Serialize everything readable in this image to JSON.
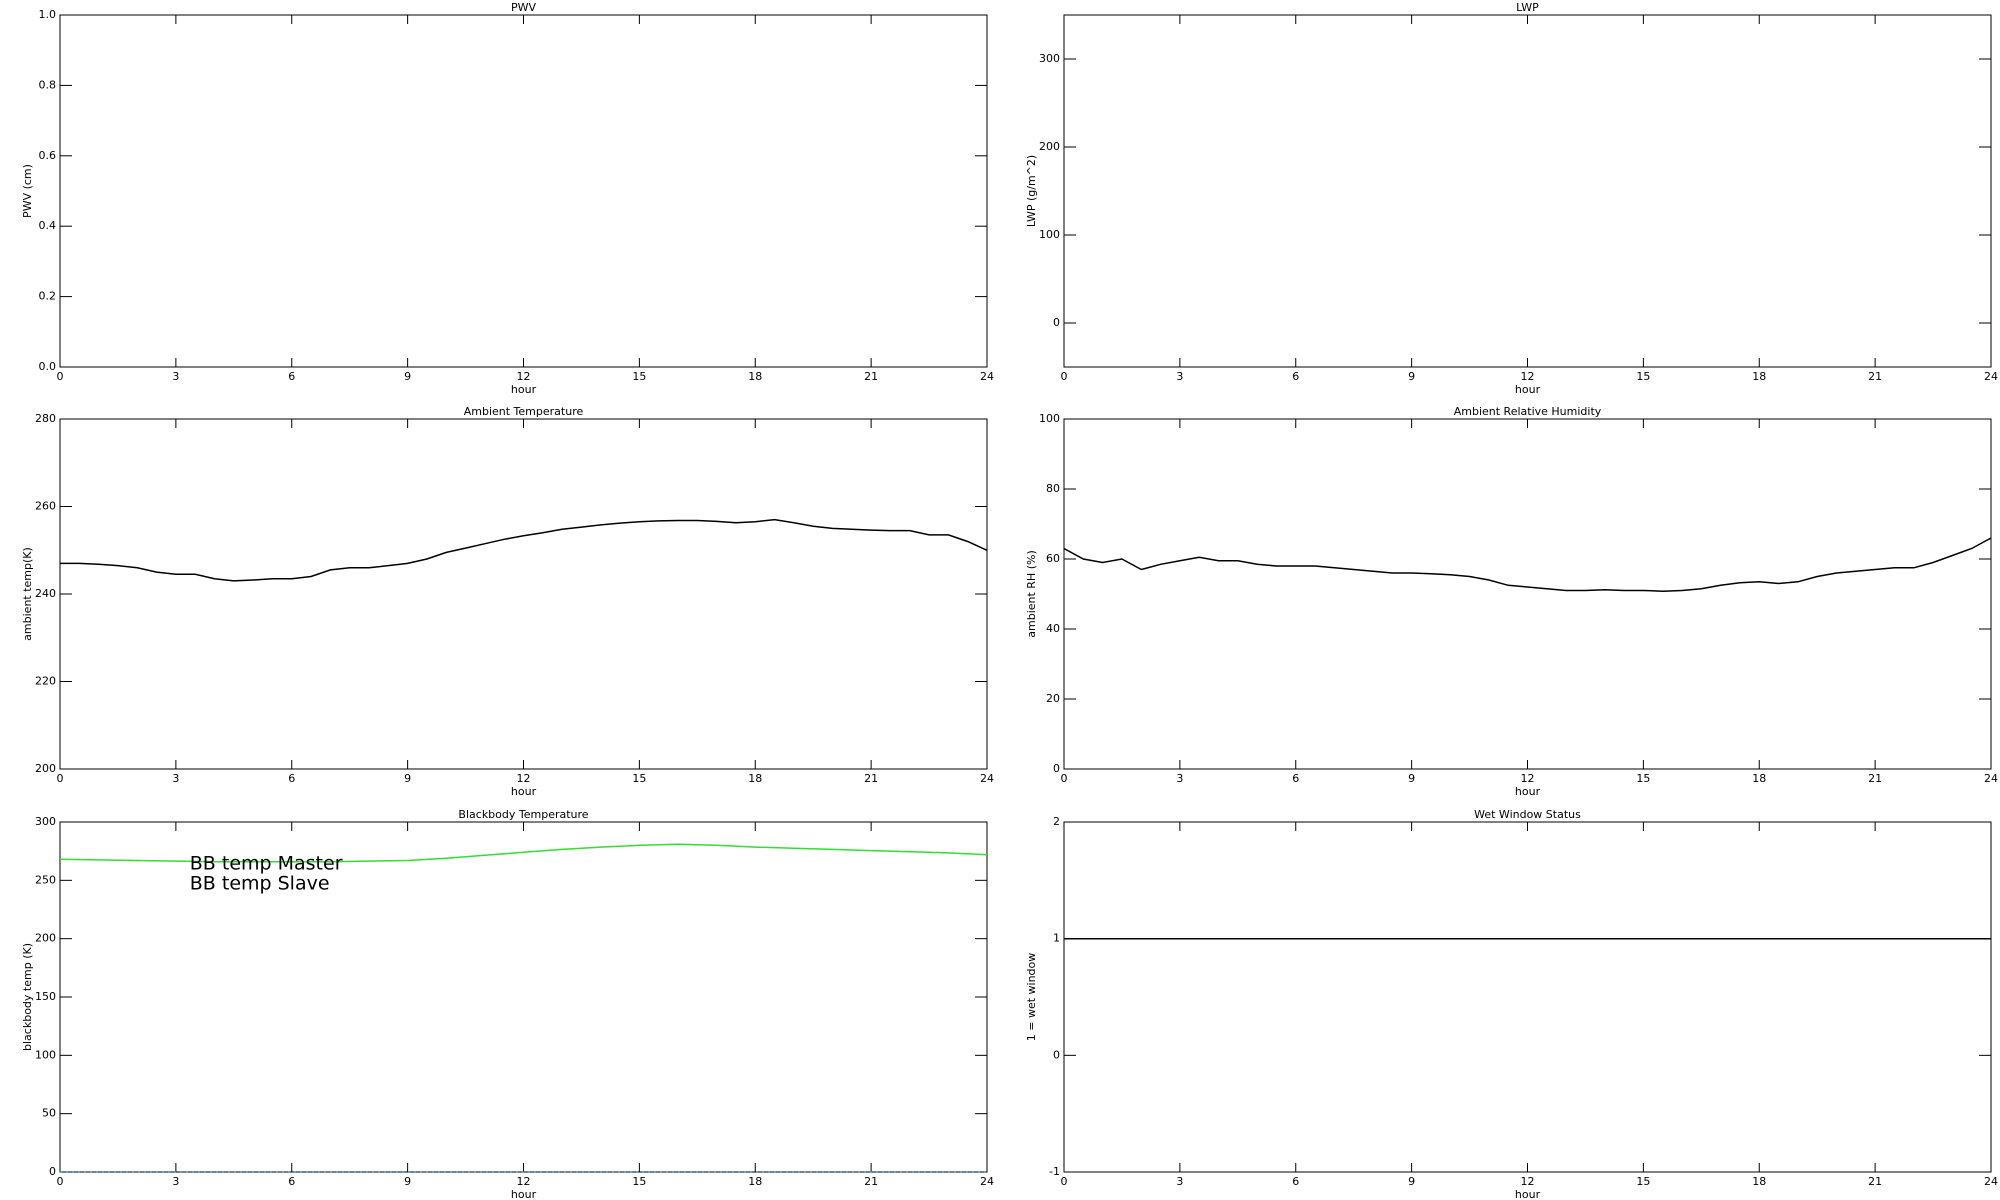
{
  "chart_data": [
    {
      "type": "line",
      "title": "PWV",
      "xlabel": "hour",
      "ylabel": "PWV (cm)",
      "xlim": [
        0,
        24
      ],
      "xticks": [
        0,
        3,
        6,
        9,
        12,
        15,
        18,
        21,
        24
      ],
      "ylim": [
        0,
        1
      ],
      "yticks": [
        {
          "value": 0,
          "label": "0.0"
        },
        0.2,
        0.4,
        0.6,
        0.8,
        {
          "value": 1,
          "label": "1.0"
        }
      ],
      "x": [],
      "series": []
    },
    {
      "type": "line",
      "title": "LWP",
      "xlabel": "hour",
      "ylabel": "LWP (g/m^2)",
      "xlim": [
        0,
        24
      ],
      "xticks": [
        0,
        3,
        6,
        9,
        12,
        15,
        18,
        21,
        24
      ],
      "ylim": [
        -50,
        350
      ],
      "yticks": [
        0,
        100,
        200,
        300
      ],
      "x": [],
      "series": []
    },
    {
      "type": "line",
      "title": "Ambient Temperature",
      "xlabel": "hour",
      "ylabel": "ambient temp(K)",
      "xlim": [
        0,
        24
      ],
      "xticks": [
        0,
        3,
        6,
        9,
        12,
        15,
        18,
        21,
        24
      ],
      "ylim": [
        200,
        280
      ],
      "yticks": [
        200,
        220,
        240,
        260,
        280
      ],
      "x": [
        0,
        0.5,
        1,
        1.5,
        2,
        2.5,
        3,
        3.5,
        4,
        4.5,
        5,
        5.5,
        6,
        6.5,
        7,
        7.5,
        8,
        8.5,
        9,
        9.5,
        10,
        10.5,
        11,
        11.5,
        12,
        12.5,
        13,
        13.5,
        14,
        14.5,
        15,
        15.5,
        16,
        16.5,
        17,
        17.5,
        18,
        18.5,
        19,
        19.5,
        20,
        20.5,
        21,
        21.5,
        22,
        22.5,
        23,
        23.5,
        24
      ],
      "series": [
        {
          "color": "#000000",
          "values": [
            247,
            247,
            246.8,
            246.5,
            246,
            245,
            244.5,
            244.5,
            243.5,
            243,
            243.2,
            243.5,
            243.5,
            244,
            245.5,
            246,
            246,
            246.5,
            247,
            248,
            249.5,
            250.5,
            251.5,
            252.5,
            253.3,
            254,
            254.8,
            255.3,
            255.8,
            256.2,
            256.5,
            256.7,
            256.8,
            256.8,
            256.6,
            256.3,
            256.5,
            257,
            256.3,
            255.5,
            255,
            254.8,
            254.6,
            254.5,
            254.5,
            253.5,
            253.5,
            252,
            250
          ]
        }
      ]
    },
    {
      "type": "line",
      "title": "Ambient Relative Humidity",
      "xlabel": "hour",
      "ylabel": "ambient RH (%)",
      "xlim": [
        0,
        24
      ],
      "xticks": [
        0,
        3,
        6,
        9,
        12,
        15,
        18,
        21,
        24
      ],
      "ylim": [
        0,
        100
      ],
      "yticks": [
        0,
        20,
        40,
        60,
        80,
        100
      ],
      "x": [
        0,
        0.5,
        1,
        1.5,
        2,
        2.5,
        3,
        3.5,
        4,
        4.5,
        5,
        5.5,
        6,
        6.5,
        7,
        7.5,
        8,
        8.5,
        9,
        9.5,
        10,
        10.5,
        11,
        11.5,
        12,
        12.5,
        13,
        13.5,
        14,
        14.5,
        15,
        15.5,
        16,
        16.5,
        17,
        17.5,
        18,
        18.5,
        19,
        19.5,
        20,
        20.5,
        21,
        21.5,
        22,
        22.5,
        23,
        23.5,
        24
      ],
      "series": [
        {
          "color": "#000000",
          "values": [
            63,
            60,
            59,
            60,
            57,
            58.5,
            59.5,
            60.5,
            59.5,
            59.5,
            58.5,
            58,
            58,
            58,
            57.5,
            57,
            56.5,
            56,
            56,
            55.8,
            55.5,
            55,
            54,
            52.5,
            52,
            51.5,
            51,
            51,
            51.2,
            51,
            51,
            50.8,
            51,
            51.5,
            52.5,
            53.2,
            53.5,
            53,
            53.5,
            55,
            56,
            56.5,
            57,
            57.5,
            57.5,
            59,
            61,
            63,
            66
          ]
        }
      ]
    },
    {
      "type": "line",
      "title": "Blackbody Temperature",
      "xlabel": "hour",
      "ylabel": "blackbody temp (K)",
      "xlim": [
        0,
        24
      ],
      "xticks": [
        0,
        3,
        6,
        9,
        12,
        15,
        18,
        21,
        24
      ],
      "ylim": [
        0,
        300
      ],
      "yticks": [
        0,
        50,
        100,
        150,
        200,
        250,
        300
      ],
      "x": [
        0,
        1,
        2,
        3,
        4,
        5,
        6,
        7,
        8,
        9,
        10,
        11,
        12,
        13,
        14,
        15,
        16,
        17,
        18,
        19,
        20,
        21,
        22,
        23,
        24
      ],
      "series": [
        {
          "name": "BB temp Master",
          "color": "#2a8cdc",
          "values": [
            0,
            0,
            0,
            0,
            0,
            0,
            0,
            0,
            0,
            0,
            0,
            0,
            0,
            0,
            0,
            0,
            0,
            0,
            0,
            0,
            0,
            0,
            0,
            0,
            0
          ]
        },
        {
          "name": "BB temp Slave",
          "color": "#33dd33",
          "values": [
            268,
            267.5,
            267,
            266.5,
            266,
            266,
            266,
            266,
            266.5,
            267,
            269,
            271.5,
            274,
            276.5,
            278.5,
            280,
            281,
            280,
            278.5,
            277.5,
            276.5,
            275.5,
            274.5,
            273.5,
            272
          ]
        }
      ]
    },
    {
      "type": "line",
      "title": "Wet Window Status",
      "xlabel": "hour",
      "ylabel": "1 = wet window",
      "xlim": [
        0,
        24
      ],
      "xticks": [
        0,
        3,
        6,
        9,
        12,
        15,
        18,
        21,
        24
      ],
      "ylim": [
        -1,
        2
      ],
      "yticks": [
        -1,
        0,
        1,
        2
      ],
      "x": [
        0,
        24
      ],
      "series": [
        {
          "color": "#000000",
          "values": [
            1,
            1
          ]
        }
      ]
    }
  ]
}
